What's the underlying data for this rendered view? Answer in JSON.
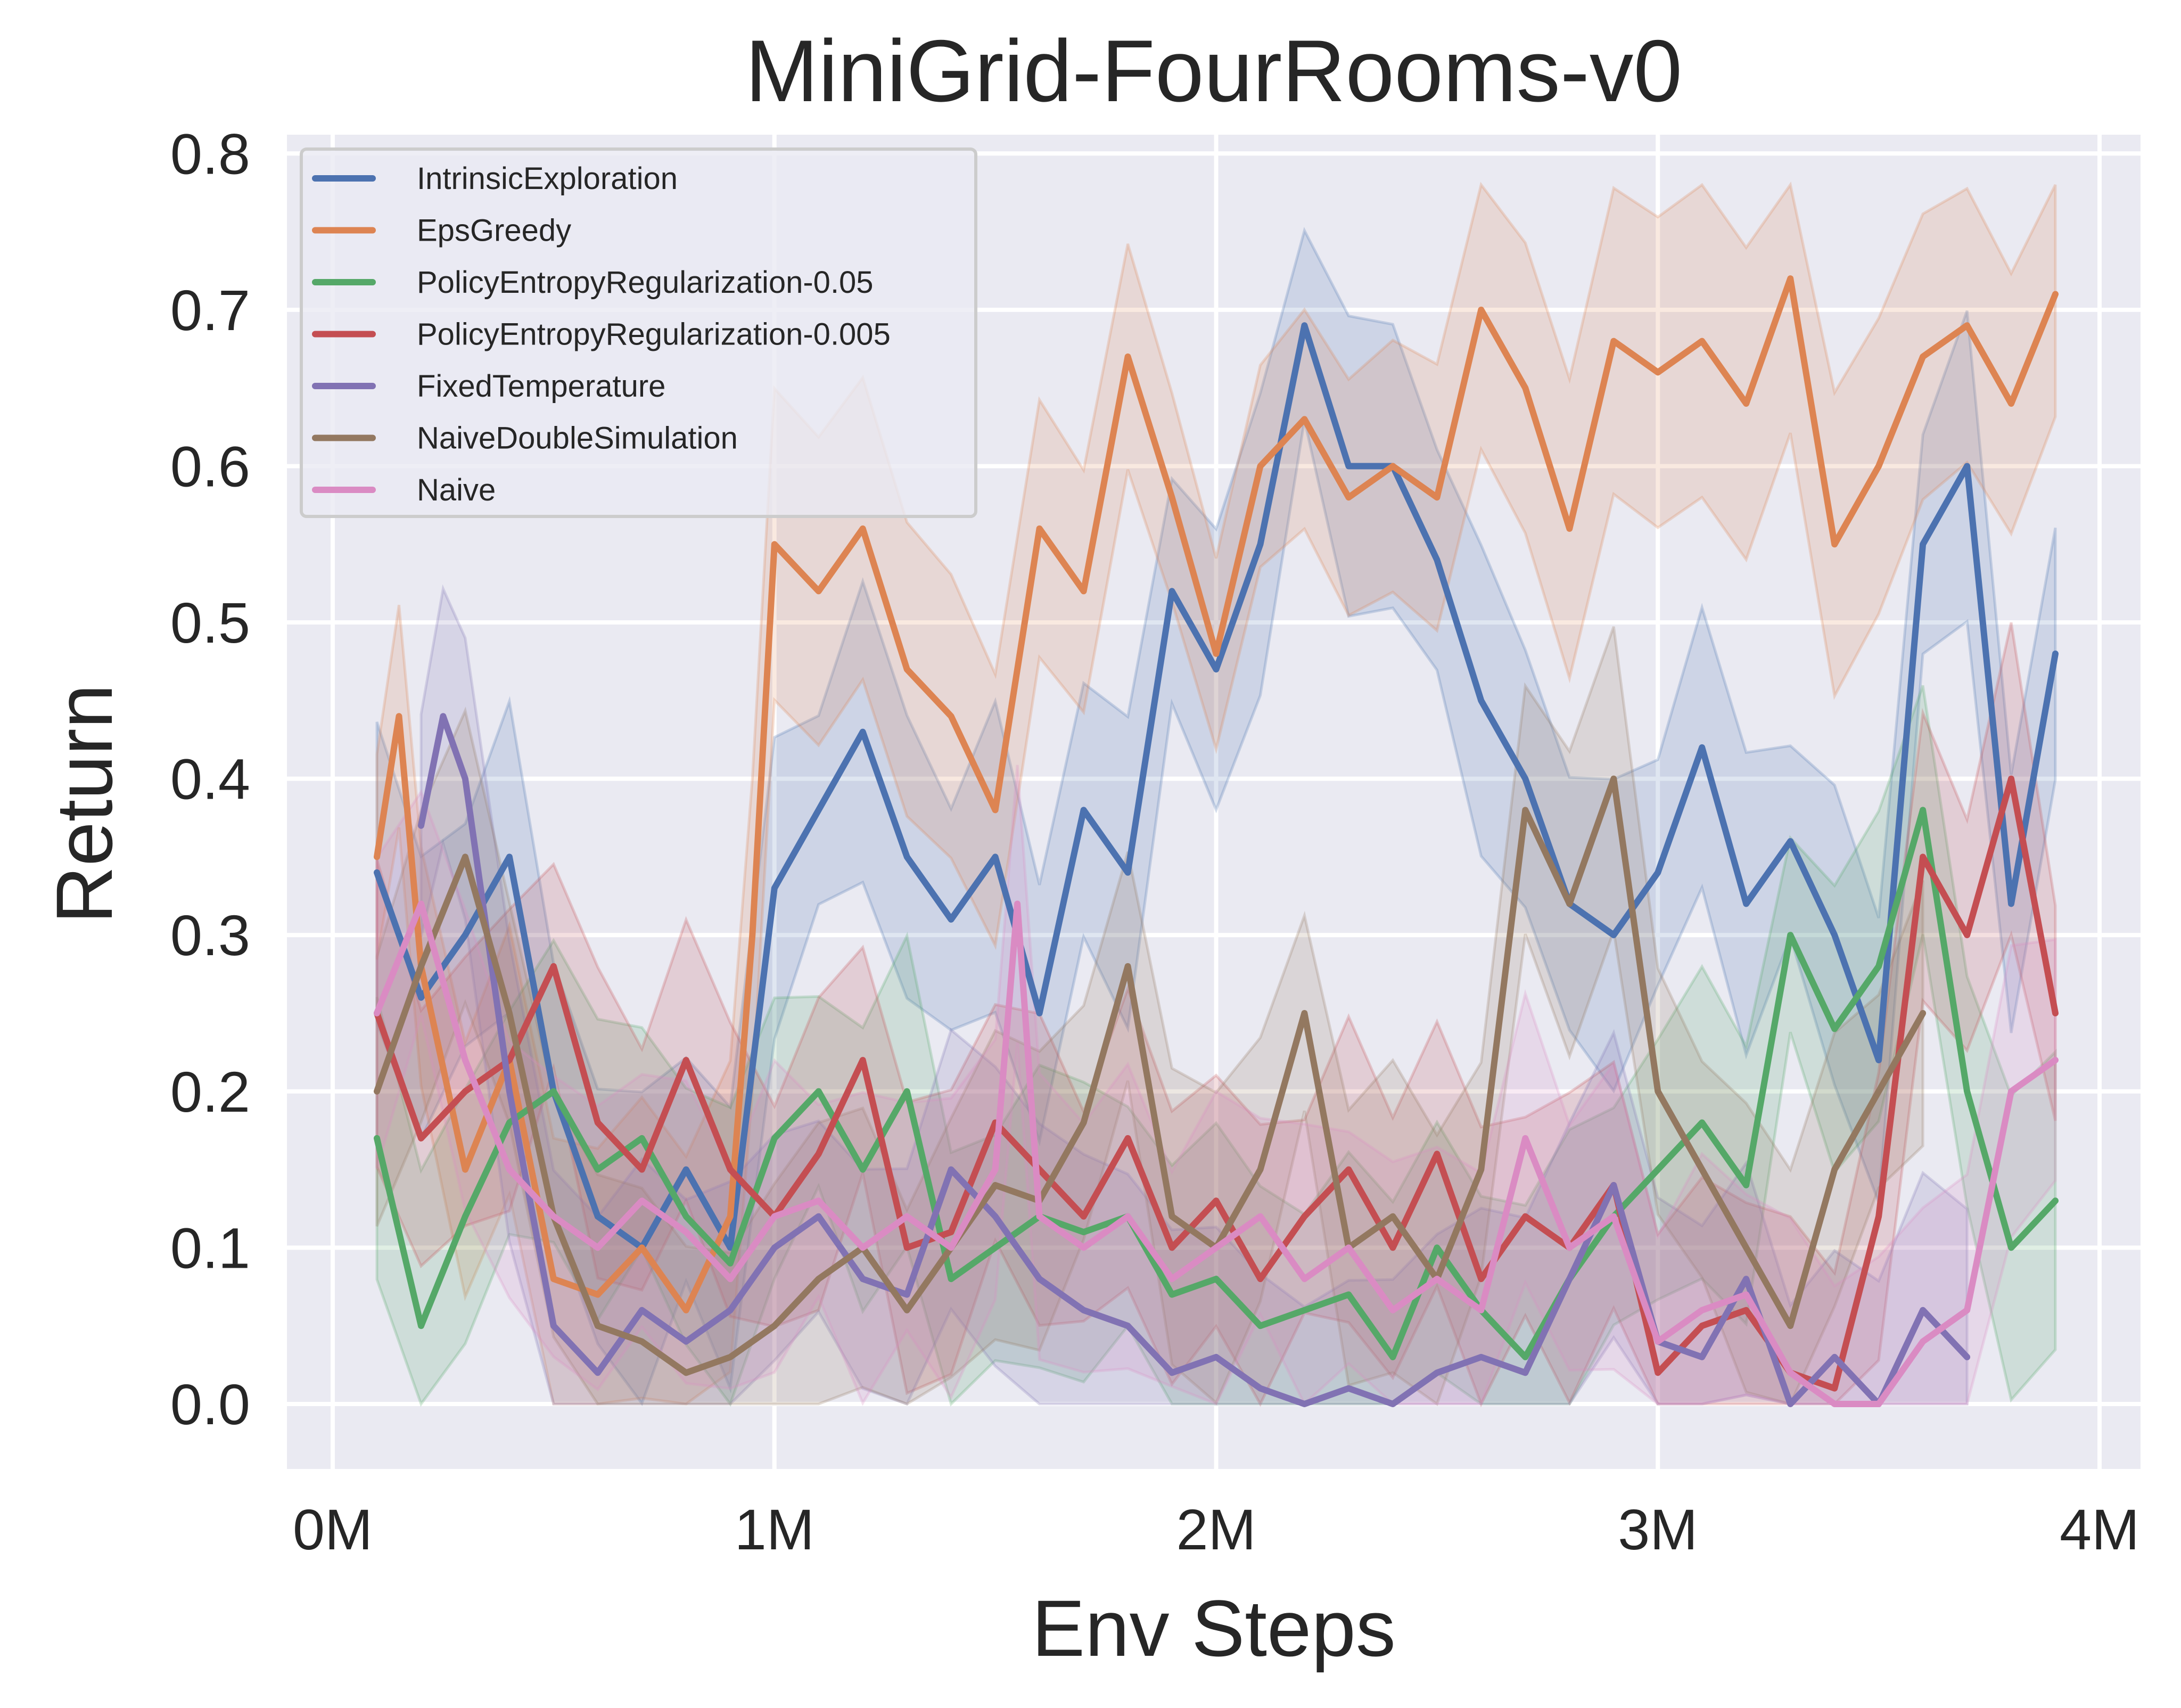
{
  "chart_data": {
    "type": "line",
    "title": "MiniGrid-FourRooms-v0",
    "xlabel": "Env Steps",
    "ylabel": "Return",
    "xlim": [
      -0.1,
      4.05
    ],
    "ylim": [
      -0.04,
      0.81
    ],
    "x_ticks": [
      0,
      1,
      2,
      3,
      4
    ],
    "x_tick_labels": [
      "0M",
      "1M",
      "2M",
      "3M",
      "4M"
    ],
    "y_ticks": [
      0.0,
      0.1,
      0.2,
      0.3,
      0.4,
      0.5,
      0.6,
      0.7,
      0.8
    ],
    "y_tick_labels": [
      "0.0",
      "0.1",
      "0.2",
      "0.3",
      "0.4",
      "0.5",
      "0.6",
      "0.7",
      "0.8"
    ],
    "grid": true,
    "legend_position": "upper left",
    "x_unit": "millions of env steps",
    "series": [
      {
        "name": "IntrinsicExploration",
        "color": "#4c72b0",
        "x": [
          0.1,
          0.2,
          0.3,
          0.4,
          0.5,
          0.6,
          0.7,
          0.8,
          0.9,
          1.0,
          1.1,
          1.2,
          1.3,
          1.4,
          1.5,
          1.6,
          1.7,
          1.8,
          1.9,
          2.0,
          2.1,
          2.2,
          2.3,
          2.4,
          2.5,
          2.6,
          2.7,
          2.8,
          2.9,
          3.0,
          3.1,
          3.2,
          3.3,
          3.4,
          3.5,
          3.6,
          3.7,
          3.8,
          3.9
        ],
        "values": [
          0.34,
          0.26,
          0.3,
          0.35,
          0.2,
          0.12,
          0.1,
          0.15,
          0.1,
          0.33,
          0.38,
          0.43,
          0.35,
          0.31,
          0.35,
          0.25,
          0.38,
          0.34,
          0.52,
          0.47,
          0.55,
          0.69,
          0.6,
          0.6,
          0.54,
          0.45,
          0.4,
          0.32,
          0.3,
          0.34,
          0.42,
          0.32,
          0.36,
          0.3,
          0.22,
          0.55,
          0.6,
          0.32,
          0.48
        ]
      },
      {
        "name": "EpsGreedy",
        "color": "#dd8452",
        "x": [
          0.1,
          0.15,
          0.2,
          0.3,
          0.4,
          0.5,
          0.6,
          0.7,
          0.8,
          0.9,
          0.95,
          1.0,
          1.1,
          1.2,
          1.3,
          1.4,
          1.5,
          1.6,
          1.7,
          1.8,
          1.9,
          2.0,
          2.1,
          2.2,
          2.3,
          2.4,
          2.5,
          2.6,
          2.7,
          2.8,
          2.9,
          3.0,
          3.1,
          3.2,
          3.3,
          3.4,
          3.5,
          3.6,
          3.7,
          3.8,
          3.9
        ],
        "values": [
          0.35,
          0.44,
          0.28,
          0.15,
          0.22,
          0.08,
          0.07,
          0.1,
          0.06,
          0.12,
          0.3,
          0.55,
          0.52,
          0.56,
          0.47,
          0.44,
          0.38,
          0.56,
          0.52,
          0.67,
          0.58,
          0.48,
          0.6,
          0.63,
          0.58,
          0.6,
          0.58,
          0.7,
          0.65,
          0.56,
          0.68,
          0.66,
          0.68,
          0.64,
          0.72,
          0.55,
          0.6,
          0.67,
          0.69,
          0.64,
          0.71
        ]
      },
      {
        "name": "PolicyEntropyRegularization-0.05",
        "color": "#55a868",
        "x": [
          0.1,
          0.2,
          0.3,
          0.4,
          0.5,
          0.6,
          0.7,
          0.8,
          0.9,
          1.0,
          1.1,
          1.2,
          1.3,
          1.4,
          1.5,
          1.6,
          1.7,
          1.8,
          1.9,
          2.0,
          2.1,
          2.2,
          2.3,
          2.4,
          2.5,
          2.6,
          2.7,
          2.8,
          2.9,
          3.0,
          3.1,
          3.2,
          3.3,
          3.4,
          3.5,
          3.6,
          3.7,
          3.8,
          3.9
        ],
        "values": [
          0.17,
          0.05,
          0.12,
          0.18,
          0.2,
          0.15,
          0.17,
          0.12,
          0.09,
          0.17,
          0.2,
          0.15,
          0.2,
          0.08,
          0.1,
          0.12,
          0.11,
          0.12,
          0.07,
          0.08,
          0.05,
          0.06,
          0.07,
          0.03,
          0.1,
          0.06,
          0.03,
          0.08,
          0.12,
          0.15,
          0.18,
          0.14,
          0.3,
          0.24,
          0.28,
          0.38,
          0.2,
          0.1,
          0.13
        ]
      },
      {
        "name": "PolicyEntropyRegularization-0.005",
        "color": "#c44e52",
        "x": [
          0.1,
          0.2,
          0.3,
          0.4,
          0.5,
          0.6,
          0.7,
          0.8,
          0.9,
          1.0,
          1.1,
          1.2,
          1.3,
          1.4,
          1.5,
          1.6,
          1.7,
          1.8,
          1.9,
          2.0,
          2.1,
          2.2,
          2.3,
          2.4,
          2.5,
          2.6,
          2.7,
          2.8,
          2.9,
          3.0,
          3.1,
          3.2,
          3.3,
          3.4,
          3.5,
          3.6,
          3.7,
          3.8,
          3.9
        ],
        "values": [
          0.25,
          0.17,
          0.2,
          0.22,
          0.28,
          0.18,
          0.15,
          0.22,
          0.15,
          0.12,
          0.16,
          0.22,
          0.1,
          0.11,
          0.18,
          0.15,
          0.12,
          0.17,
          0.1,
          0.13,
          0.08,
          0.12,
          0.15,
          0.1,
          0.16,
          0.08,
          0.12,
          0.1,
          0.14,
          0.02,
          0.05,
          0.06,
          0.02,
          0.01,
          0.12,
          0.35,
          0.3,
          0.4,
          0.25
        ]
      },
      {
        "name": "FixedTemperature",
        "color": "#8172b3",
        "x": [
          0.2,
          0.25,
          0.3,
          0.4,
          0.5,
          0.6,
          0.7,
          0.8,
          0.9,
          1.0,
          1.1,
          1.2,
          1.3,
          1.4,
          1.5,
          1.6,
          1.7,
          1.8,
          1.9,
          2.0,
          2.1,
          2.2,
          2.3,
          2.4,
          2.5,
          2.6,
          2.7,
          2.8,
          2.9,
          3.0,
          3.1,
          3.2,
          3.3,
          3.4,
          3.5,
          3.6,
          3.7
        ],
        "values": [
          0.37,
          0.44,
          0.4,
          0.2,
          0.05,
          0.02,
          0.06,
          0.04,
          0.06,
          0.1,
          0.12,
          0.08,
          0.07,
          0.15,
          0.12,
          0.08,
          0.06,
          0.05,
          0.02,
          0.03,
          0.01,
          0.0,
          0.01,
          0.0,
          0.02,
          0.03,
          0.02,
          0.08,
          0.14,
          0.04,
          0.03,
          0.08,
          0.0,
          0.03,
          0.0,
          0.06,
          0.03
        ]
      },
      {
        "name": "NaiveDoubleSimulation",
        "color": "#937860",
        "x": [
          0.1,
          0.2,
          0.3,
          0.4,
          0.5,
          0.6,
          0.7,
          0.8,
          0.9,
          1.0,
          1.1,
          1.2,
          1.3,
          1.4,
          1.5,
          1.6,
          1.7,
          1.8,
          1.9,
          2.0,
          2.1,
          2.2,
          2.3,
          2.4,
          2.5,
          2.6,
          2.7,
          2.8,
          2.9,
          3.0,
          3.1,
          3.2,
          3.3,
          3.4,
          3.5,
          3.6
        ],
        "values": [
          0.2,
          0.28,
          0.35,
          0.25,
          0.12,
          0.05,
          0.04,
          0.02,
          0.03,
          0.05,
          0.08,
          0.1,
          0.06,
          0.1,
          0.14,
          0.13,
          0.18,
          0.28,
          0.12,
          0.1,
          0.15,
          0.25,
          0.1,
          0.12,
          0.08,
          0.15,
          0.38,
          0.32,
          0.4,
          0.2,
          0.15,
          0.1,
          0.05,
          0.15,
          0.2,
          0.25
        ]
      },
      {
        "name": "Naive",
        "color": "#da8bc3",
        "x": [
          0.1,
          0.2,
          0.3,
          0.4,
          0.5,
          0.6,
          0.7,
          0.8,
          0.9,
          1.0,
          1.1,
          1.2,
          1.3,
          1.4,
          1.5,
          1.55,
          1.6,
          1.7,
          1.8,
          1.9,
          2.0,
          2.1,
          2.2,
          2.3,
          2.4,
          2.5,
          2.6,
          2.7,
          2.8,
          2.9,
          3.0,
          3.1,
          3.2,
          3.3,
          3.4,
          3.5,
          3.6,
          3.7,
          3.8,
          3.9
        ],
        "values": [
          0.25,
          0.32,
          0.22,
          0.15,
          0.12,
          0.1,
          0.13,
          0.11,
          0.08,
          0.12,
          0.13,
          0.1,
          0.12,
          0.1,
          0.15,
          0.32,
          0.12,
          0.1,
          0.12,
          0.08,
          0.1,
          0.12,
          0.08,
          0.1,
          0.06,
          0.08,
          0.06,
          0.17,
          0.1,
          0.12,
          0.04,
          0.06,
          0.07,
          0.02,
          0.0,
          0.0,
          0.04,
          0.06,
          0.2,
          0.22
        ]
      }
    ]
  },
  "style": {
    "axes_bg": "#eaeaf2",
    "grid_color": "#ffffff",
    "text_color": "#262626",
    "legend_bg": "#eaeaf2",
    "legend_border": "#cccccc"
  }
}
